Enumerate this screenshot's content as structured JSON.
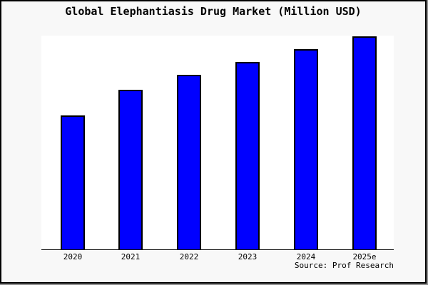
{
  "title": "Global Elephantiasis Drug Market (Million USD)",
  "source": "Source: Prof Research",
  "colors": {
    "bar_fill": "#0000ff",
    "bar_border": "#000000",
    "figure_background": "#f8f8f8",
    "plot_background": "#ffffff",
    "axis": "#000000",
    "frame_border": "#000000"
  },
  "chart_data": {
    "type": "bar",
    "title": "Global Elephantiasis Drug Market (Million USD)",
    "xlabel": "",
    "ylabel": "",
    "categories": [
      "2020",
      "2021",
      "2022",
      "2023",
      "2024",
      "2025e"
    ],
    "values": [
      63,
      75,
      82,
      88,
      94,
      100
    ],
    "ylim": [
      0,
      100.5
    ],
    "grid": false,
    "legend": false,
    "y_axis_shown": false,
    "annotation": "Source: Prof Research"
  }
}
